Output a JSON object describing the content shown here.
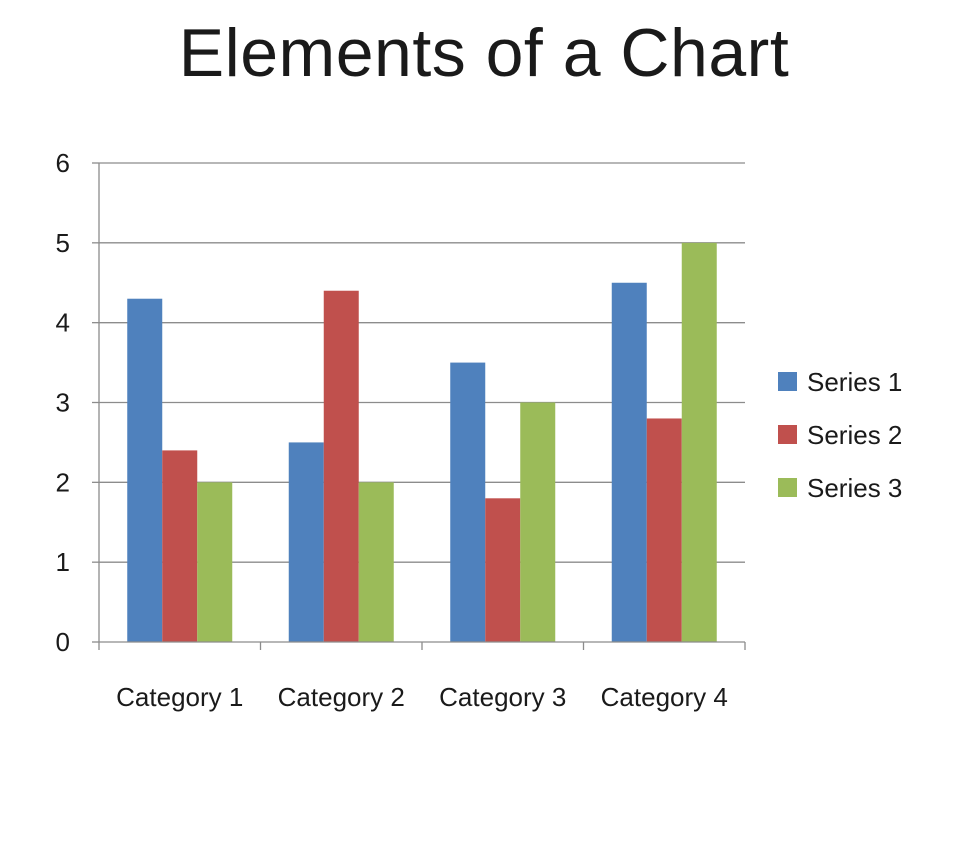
{
  "chart_data": {
    "type": "bar",
    "title": "Elements of a Chart",
    "categories": [
      "Category 1",
      "Category 2",
      "Category 3",
      "Category 4"
    ],
    "series": [
      {
        "name": "Series 1",
        "color": "#4F81BD",
        "values": [
          4.3,
          2.5,
          3.5,
          4.5
        ]
      },
      {
        "name": "Series 2",
        "color": "#C0504D",
        "values": [
          2.4,
          4.4,
          1.8,
          2.8
        ]
      },
      {
        "name": "Series 3",
        "color": "#9BBB59",
        "values": [
          2,
          2,
          3,
          5
        ]
      }
    ],
    "ylim": [
      0,
      6
    ],
    "yticks": [
      "0",
      "1",
      "2",
      "3",
      "4",
      "5",
      "6"
    ],
    "grid": true,
    "legend_position": "right"
  }
}
